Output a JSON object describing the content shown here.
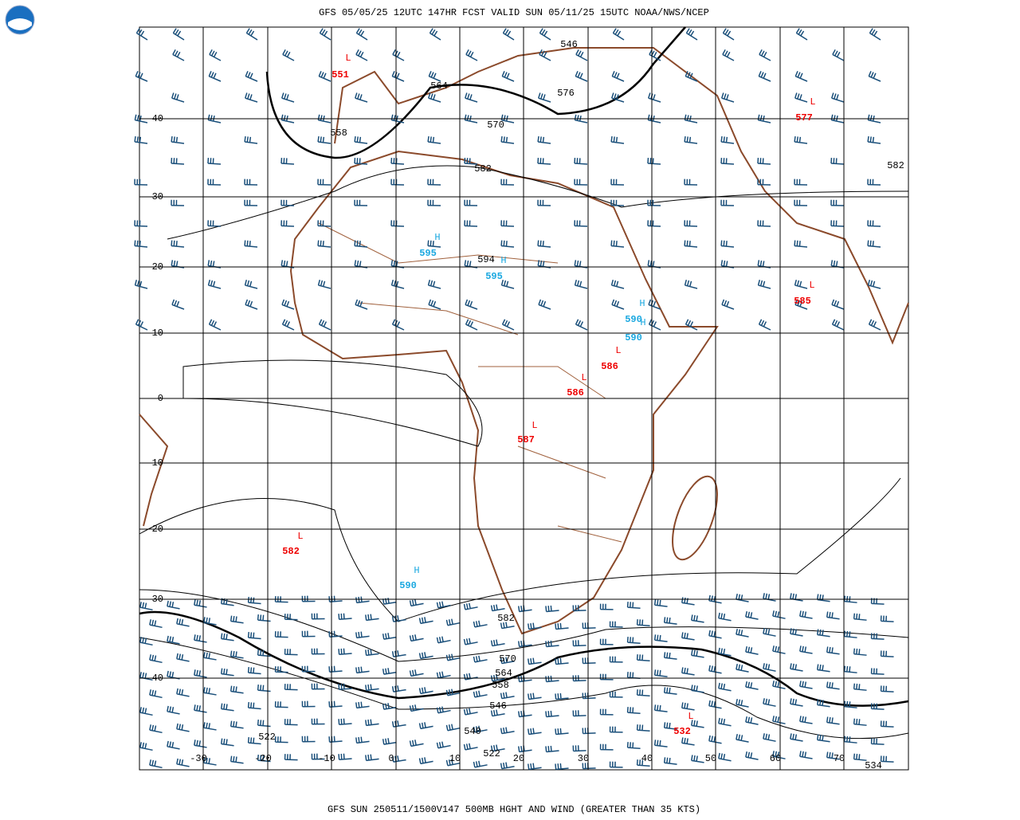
{
  "header": {
    "title": "GFS 05/05/25 12UTC 147HR FCST VALID SUN 05/11/25 15UTC NOAA/NWS/NCEP"
  },
  "footer": {
    "caption": "GFS SUN 250511/1500V147 500MB HGHT AND WIND (GREATER THAN 35 KTS)"
  },
  "lat_labels": [
    "40",
    "30",
    "20",
    "10",
    "0",
    "-10",
    "-20",
    "-30",
    "-40"
  ],
  "lon_labels": [
    "-30",
    "-20",
    "-10",
    "0",
    "10",
    "20",
    "30",
    "40",
    "50",
    "60",
    "70"
  ],
  "contour_labels": [
    "546",
    "564",
    "558",
    "576",
    "570",
    "582",
    "594",
    "582",
    "582",
    "570",
    "564",
    "558",
    "546",
    "540",
    "522",
    "522",
    "534"
  ],
  "lows": [
    {
      "symbol": "L",
      "value": "551"
    },
    {
      "symbol": "L",
      "value": "577"
    },
    {
      "symbol": "L",
      "value": "585"
    },
    {
      "symbol": "L",
      "value": "586"
    },
    {
      "symbol": "L",
      "value": "586"
    },
    {
      "symbol": "L",
      "value": "587"
    },
    {
      "symbol": "L",
      "value": "582"
    },
    {
      "symbol": "L",
      "value": "532"
    }
  ],
  "highs": [
    {
      "symbol": "H",
      "value": "595"
    },
    {
      "symbol": "H",
      "value": "595"
    },
    {
      "symbol": "H",
      "value": "590"
    },
    {
      "symbol": "H",
      "value": "590"
    },
    {
      "symbol": "H",
      "value": "590"
    }
  ]
}
